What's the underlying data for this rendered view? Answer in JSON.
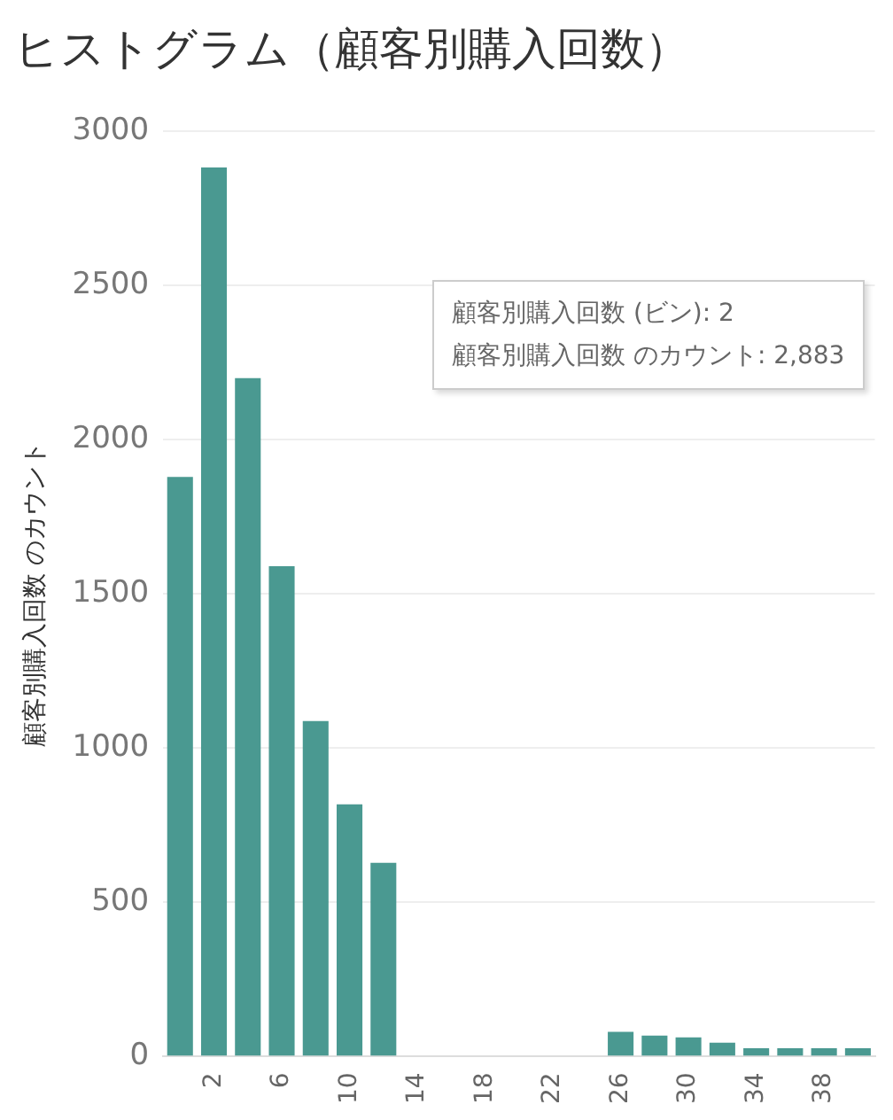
{
  "chart_data": {
    "type": "bar",
    "title": "ヒストグラム（顧客別購入回数）",
    "ylabel": "顧客別購入回数 のカウント",
    "categories": [
      null,
      "2",
      null,
      "6",
      null,
      "10",
      null,
      "14",
      null,
      "18",
      null,
      "22",
      null,
      "26",
      null,
      "30",
      null,
      "34",
      null,
      "38",
      null
    ],
    "values": [
      1880,
      2883,
      2200,
      1590,
      1088,
      818,
      628,
      null,
      null,
      null,
      null,
      null,
      null,
      80,
      68,
      62,
      45,
      27,
      27,
      27,
      27
    ],
    "color": "#4a9991",
    "ylim": [
      0,
      3000
    ],
    "yticks": [
      0,
      500,
      1000,
      1500,
      2000,
      2500,
      3000
    ],
    "grid": "y",
    "annotations": [
      "顧客別購入回数 (ビン): 2",
      "顧客別購入回数 のカウント: 2,883"
    ]
  }
}
